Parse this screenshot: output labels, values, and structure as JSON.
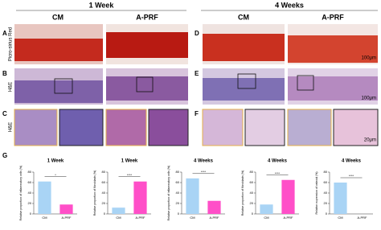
{
  "header": {
    "week1": "1 Week",
    "week4": "4 Weeks",
    "col_cm_1": "CM",
    "col_aprf_1": "A-PRF",
    "col_cm_4": "CM",
    "col_aprf_4": "A-PRF"
  },
  "rows": {
    "row_a": "Picro-sirius Red",
    "row_b": "H&E",
    "row_c": "H&E"
  },
  "panels": [
    "A",
    "B",
    "C",
    "D",
    "E",
    "F",
    "G"
  ],
  "scale_bars": [
    "100μm",
    "100μm",
    "20μm"
  ],
  "chart_data": [
    {
      "type": "bar",
      "title": "1 Week",
      "ylabel": "Relative proportion of inflammatory cells (%)",
      "categories": [
        "CM",
        "A-PRF"
      ],
      "values": [
        62,
        18
      ],
      "colors": [
        "#a9d4f5",
        "#ff4fc8"
      ],
      "ylim": [
        0,
        80
      ],
      "yticks": [
        0,
        20,
        40,
        60,
        80
      ],
      "annotation": "*"
    },
    {
      "type": "bar",
      "title": "1 Week",
      "ylabel": "Relative proportion of fibroblasts (%)",
      "categories": [
        "CM",
        "A-PRF"
      ],
      "values": [
        12,
        62
      ],
      "colors": [
        "#a9d4f5",
        "#ff4fc8"
      ],
      "ylim": [
        0,
        80
      ],
      "yticks": [
        0,
        20,
        40,
        60,
        80
      ],
      "annotation": "****"
    },
    {
      "type": "bar",
      "title": "4 Weeks",
      "ylabel": "Relative proportion of inflammatory cells (%)",
      "categories": [
        "CM",
        "A-PRF"
      ],
      "values": [
        68,
        25
      ],
      "colors": [
        "#a9d4f5",
        "#ff4fc8"
      ],
      "ylim": [
        0,
        80
      ],
      "yticks": [
        0,
        20,
        40,
        60,
        80
      ],
      "annotation": "****"
    },
    {
      "type": "bar",
      "title": "4 Weeks",
      "ylabel": "Relative proportion of fibroblasts (%)",
      "categories": [
        "CM",
        "A-PRF"
      ],
      "values": [
        18,
        65
      ],
      "colors": [
        "#a9d4f5",
        "#ff4fc8"
      ],
      "ylim": [
        0,
        80
      ],
      "yticks": [
        0,
        20,
        40,
        60,
        80
      ],
      "annotation": "****"
    },
    {
      "type": "bar",
      "title": "4 Weeks",
      "ylabel": "Relative expression of osteoid (%)",
      "categories": [
        "CM",
        "A-PRF"
      ],
      "values": [
        60,
        0
      ],
      "colors": [
        "#a9d4f5",
        "#ff4fc8"
      ],
      "ylim": [
        0,
        80
      ],
      "yticks": [
        0,
        20,
        40,
        60,
        80
      ],
      "annotation": "****"
    }
  ]
}
